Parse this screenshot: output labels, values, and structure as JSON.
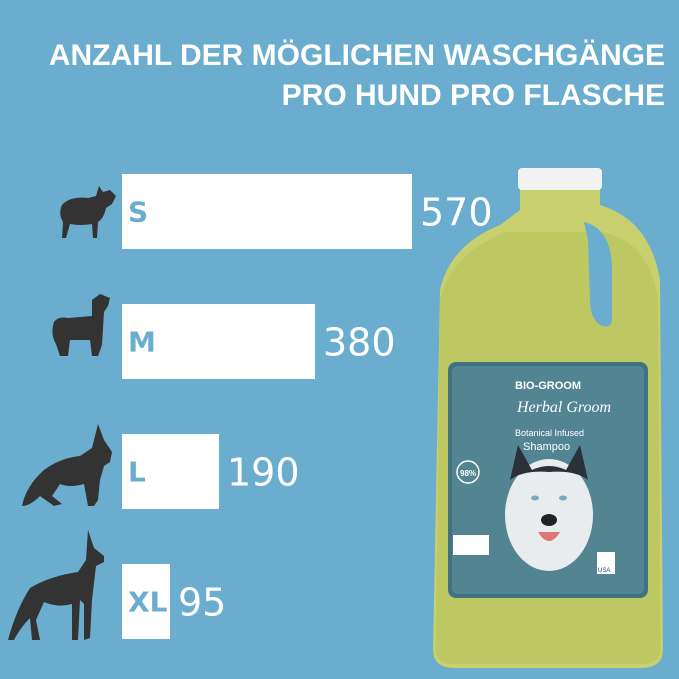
{
  "header": {
    "line1": "ANZAHL DER MÖGLICHEN WASCHGÄNGE",
    "line2": "PRO HUND PRO FLASCHE"
  },
  "colors": {
    "background": "#6aadce",
    "bar": "#ffffff",
    "silhouette": "#333333",
    "value_text": "#ffffff",
    "category_text": "#6aadce"
  },
  "chart_data": {
    "type": "bar",
    "orientation": "horizontal",
    "categories": [
      "S",
      "M",
      "L",
      "XL"
    ],
    "values": [
      570,
      380,
      190,
      95
    ],
    "icons": [
      "small-dog-silhouette-icon",
      "medium-dog-silhouette-icon",
      "large-dog-silhouette-icon",
      "xl-dog-silhouette-icon"
    ],
    "grid": false
  },
  "product": {
    "brand": "BIO-GROOM",
    "name": "Herbal Groom",
    "subtitle1": "Botanical Infused",
    "subtitle2": "Shampoo",
    "badge": "98%",
    "flag": "USA"
  }
}
